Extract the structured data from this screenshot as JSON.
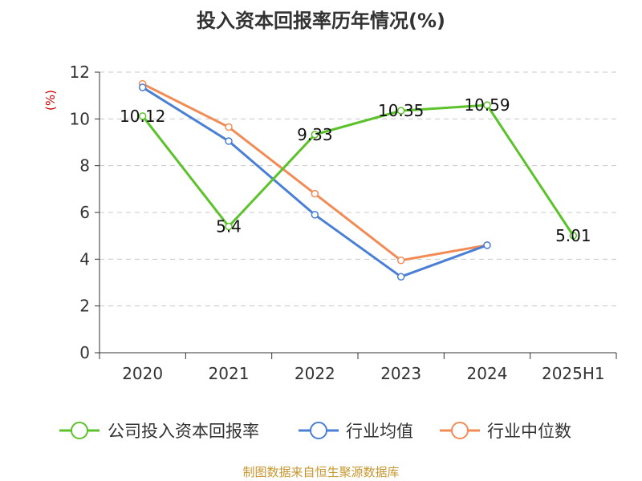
{
  "chart_data": {
    "type": "line",
    "title": "投入资本回报率历年情况(%)",
    "ylabel": "(%)",
    "categories": [
      "2020",
      "2021",
      "2022",
      "2023",
      "2024",
      "2025H1"
    ],
    "ylim": [
      0,
      12
    ],
    "yticks": [
      0,
      2,
      4,
      6,
      8,
      10,
      12
    ],
    "grid": "horizontal-dashed",
    "legend_position": "bottom",
    "series": [
      {
        "name": "公司投入资本回报率",
        "color": "#5cc22b",
        "values": [
          10.12,
          5.4,
          9.33,
          10.35,
          10.59,
          5.01
        ],
        "data_labels": [
          "10.12",
          "5.4",
          "9.33",
          "10.35",
          "10.59",
          "5.01"
        ]
      },
      {
        "name": "行业均值",
        "color": "#4a7fd6",
        "values": [
          11.35,
          9.05,
          5.9,
          3.25,
          4.6,
          null
        ]
      },
      {
        "name": "行业中位数",
        "color": "#f28b55",
        "values": [
          11.5,
          9.65,
          6.8,
          3.95,
          4.6,
          null
        ]
      }
    ],
    "source": "制图数据来自恒生聚源数据库"
  }
}
